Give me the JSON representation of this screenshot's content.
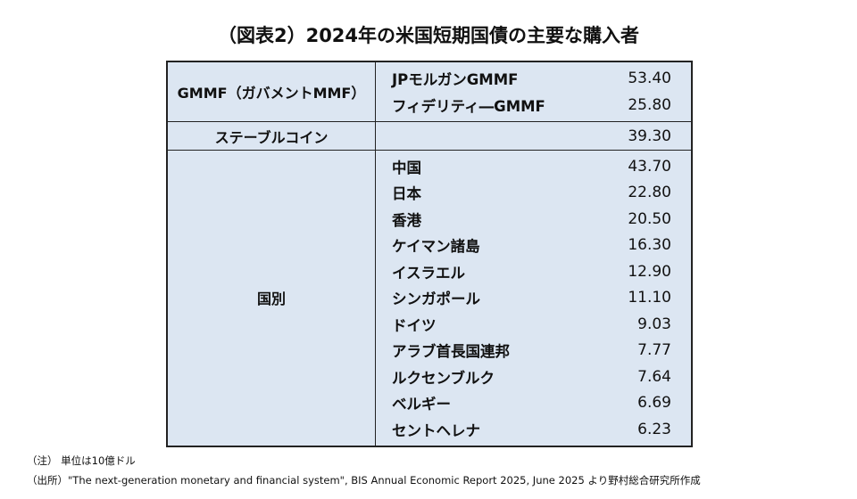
{
  "title": "（図表2）2024年の米国短期国債の主要な購入者",
  "table": {
    "groups": [
      {
        "label": "GMMF（ガバメントMMF）",
        "rows": [
          {
            "name": "JPモルガンGMMF",
            "value": "53.40"
          },
          {
            "name": "フィデリティ―GMMF",
            "value": "25.80"
          }
        ]
      },
      {
        "label": "ステーブルコイン",
        "rows": [
          {
            "value": "39.30"
          }
        ]
      },
      {
        "label": "国別",
        "rows": [
          {
            "name": "中国",
            "value": "43.70"
          },
          {
            "name": "日本",
            "value": "22.80"
          },
          {
            "name": "香港",
            "value": "20.50"
          },
          {
            "name": "ケイマン諸島",
            "value": "16.30"
          },
          {
            "name": "イスラエル",
            "value": "12.90"
          },
          {
            "name": "シンガポール",
            "value": "11.10"
          },
          {
            "name": "ドイツ",
            "value": "9.03"
          },
          {
            "name": "アラブ首長国連邦",
            "value": "7.77"
          },
          {
            "name": "ルクセンブルク",
            "value": "7.64"
          },
          {
            "name": "ベルギー",
            "value": "6.69"
          },
          {
            "name": "セントヘレナ",
            "value": "6.23"
          }
        ]
      }
    ]
  },
  "notes": [
    "（注） 単位は10億ドル",
    "（出所）\"The next-generation monetary and financial system\", BIS Annual Economic Report 2025, June 2025 より野村総合研究所作成"
  ]
}
